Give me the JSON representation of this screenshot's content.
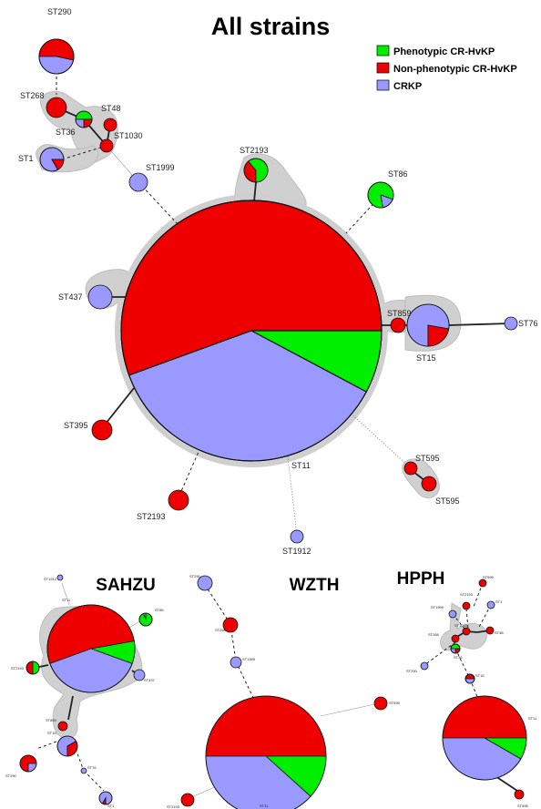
{
  "titles": {
    "main": "All strains",
    "sahzu": "SAHZU",
    "wzth": "WZTH",
    "hpph": "HPPH"
  },
  "legend": [
    {
      "label": "Phenotypic CR-HvKP",
      "color": "#00ee00"
    },
    {
      "label": "Non-phenotypic CR-HvKP",
      "color": "#ee0000"
    },
    {
      "label": "CRKP",
      "color": "#9999ff"
    }
  ],
  "colors": {
    "green": "#00ee00",
    "red": "#ee0000",
    "blue": "#9999ff",
    "cluster": "#d0d0d0",
    "edge": "#222222"
  },
  "main_labels": {
    "ST290": "ST290",
    "ST268": "ST268",
    "ST48": "ST48",
    "ST36": "ST36",
    "ST1030": "ST1030",
    "ST1": "ST1",
    "ST1999": "ST1999",
    "ST2193": "ST2193",
    "ST86": "ST86",
    "ST437": "ST437",
    "ST859": "ST859",
    "ST76": "ST76",
    "ST15": "ST15",
    "ST395": "ST395",
    "ST11": "ST11",
    "ST595a": "ST595",
    "ST595b": "ST595",
    "ST2193b": "ST2193",
    "ST1912": "ST1912"
  },
  "sahzu_labels": {
    "ST1912": "ST1912",
    "ST86": "ST86",
    "ST11": "ST11",
    "ST2193": "ST2193",
    "ST437": "ST437",
    "ST859": "ST859",
    "ST15": "ST15",
    "ST290": "ST290",
    "ST76": "ST76",
    "ST1": "ST1"
  },
  "wzth_labels": {
    "ST290": "ST290",
    "ST268": "ST268",
    "ST1999": "ST1999",
    "ST595": "ST595",
    "ST2193": "ST2193",
    "ST11": "ST11"
  },
  "hpph_labels": {
    "ST595": "ST595",
    "ST2193": "ST2193",
    "ST1": "ST1",
    "ST1999": "ST1999",
    "ST1030": "ST1030",
    "ST268": "ST268",
    "ST48": "ST48",
    "ST36": "ST36",
    "ST290": "ST290",
    "ST15": "ST15",
    "ST11": "ST11",
    "ST595b": "ST595"
  }
}
